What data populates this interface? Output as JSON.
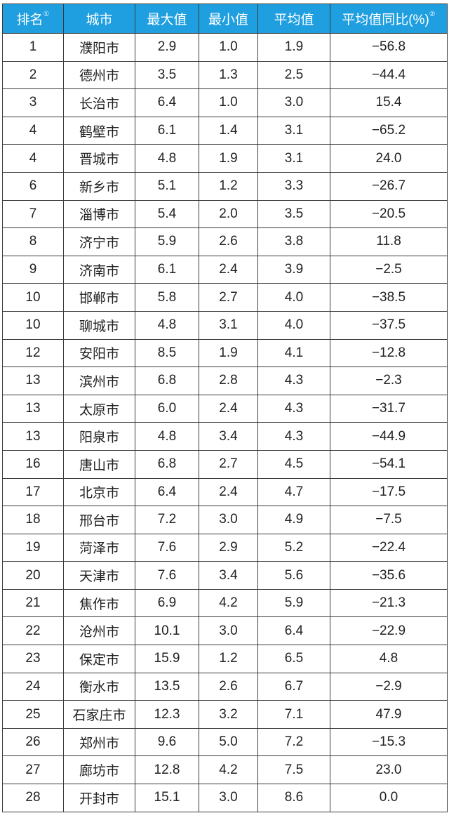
{
  "table": {
    "header_color": "#1f9fe0",
    "headers": [
      {
        "label": "排名",
        "note": "①"
      },
      {
        "label": "城市",
        "note": ""
      },
      {
        "label": "最大值",
        "note": ""
      },
      {
        "label": "最小值",
        "note": ""
      },
      {
        "label": "平均值",
        "note": ""
      },
      {
        "label": "平均值同比(%)",
        "note": "②"
      }
    ],
    "rows": [
      [
        "1",
        "濮阳市",
        "2.9",
        "1.0",
        "1.9",
        "−56.8"
      ],
      [
        "2",
        "德州市",
        "3.5",
        "1.3",
        "2.5",
        "−44.4"
      ],
      [
        "3",
        "长治市",
        "6.4",
        "1.0",
        "3.0",
        "15.4"
      ],
      [
        "4",
        "鹤壁市",
        "6.1",
        "1.4",
        "3.1",
        "−65.2"
      ],
      [
        "4",
        "晋城市",
        "4.8",
        "1.9",
        "3.1",
        "24.0"
      ],
      [
        "6",
        "新乡市",
        "5.1",
        "1.2",
        "3.3",
        "−26.7"
      ],
      [
        "7",
        "淄博市",
        "5.4",
        "2.0",
        "3.5",
        "−20.5"
      ],
      [
        "8",
        "济宁市",
        "5.9",
        "2.6",
        "3.8",
        "11.8"
      ],
      [
        "9",
        "济南市",
        "6.1",
        "2.4",
        "3.9",
        "−2.5"
      ],
      [
        "10",
        "邯郸市",
        "5.8",
        "2.7",
        "4.0",
        "−38.5"
      ],
      [
        "10",
        "聊城市",
        "4.8",
        "3.1",
        "4.0",
        "−37.5"
      ],
      [
        "12",
        "安阳市",
        "8.5",
        "1.9",
        "4.1",
        "−12.8"
      ],
      [
        "13",
        "滨州市",
        "6.8",
        "2.8",
        "4.3",
        "−2.3"
      ],
      [
        "13",
        "太原市",
        "6.0",
        "2.4",
        "4.3",
        "−31.7"
      ],
      [
        "13",
        "阳泉市",
        "4.8",
        "3.4",
        "4.3",
        "−44.9"
      ],
      [
        "16",
        "唐山市",
        "6.8",
        "2.7",
        "4.5",
        "−54.1"
      ],
      [
        "17",
        "北京市",
        "6.4",
        "2.4",
        "4.7",
        "−17.5"
      ],
      [
        "18",
        "邢台市",
        "7.2",
        "3.0",
        "4.9",
        "−7.5"
      ],
      [
        "19",
        "菏泽市",
        "7.6",
        "2.9",
        "5.2",
        "−22.4"
      ],
      [
        "20",
        "天津市",
        "7.6",
        "3.4",
        "5.6",
        "−35.6"
      ],
      [
        "21",
        "焦作市",
        "6.9",
        "4.2",
        "5.9",
        "−21.3"
      ],
      [
        "22",
        "沧州市",
        "10.1",
        "3.0",
        "6.4",
        "−22.9"
      ],
      [
        "23",
        "保定市",
        "15.9",
        "1.2",
        "6.5",
        "4.8"
      ],
      [
        "24",
        "衡水市",
        "13.5",
        "2.6",
        "6.7",
        "−2.9"
      ],
      [
        "25",
        "石家庄市",
        "12.3",
        "3.2",
        "7.1",
        "47.9"
      ],
      [
        "26",
        "郑州市",
        "9.6",
        "5.0",
        "7.2",
        "−15.3"
      ],
      [
        "27",
        "廊坊市",
        "12.8",
        "4.2",
        "7.5",
        "23.0"
      ],
      [
        "28",
        "开封市",
        "15.1",
        "3.0",
        "8.6",
        "0.0"
      ]
    ]
  }
}
